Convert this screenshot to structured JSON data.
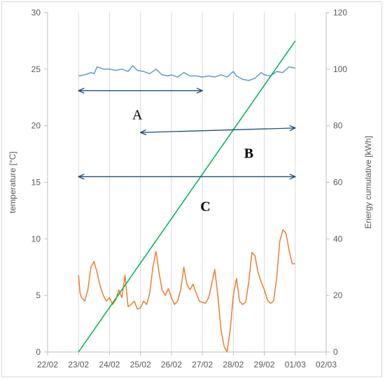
{
  "chart_data": {
    "type": "line",
    "title": "",
    "xlabel": "",
    "ylabel_left": "temperature [°C]",
    "ylabel_right": "Energy cumulative [kWh]",
    "x_ticks": [
      "22/02",
      "23/02",
      "24/02",
      "25/02",
      "26/02",
      "27/02",
      "28/02",
      "29/02",
      "01/03",
      "02/03"
    ],
    "x_range": [
      0,
      9
    ],
    "y_left_ticks": [
      "0",
      "5",
      "10",
      "15",
      "20",
      "25",
      "30"
    ],
    "y_left_range": [
      0,
      30
    ],
    "y_right_ticks": [
      "0",
      "20",
      "40",
      "60",
      "80",
      "100",
      "120"
    ],
    "y_right_range": [
      0,
      120
    ],
    "grid": "vertical",
    "legend": "none",
    "series": [
      {
        "axis": "left",
        "color": "#5b9bd5",
        "x": [
          1.0,
          1.2,
          1.4,
          1.5,
          1.6,
          1.8,
          2.0,
          2.2,
          2.4,
          2.6,
          2.75,
          2.9,
          3.1,
          3.3,
          3.5,
          3.7,
          3.9,
          4.0,
          4.2,
          4.4,
          4.6,
          4.8,
          5.0,
          5.2,
          5.4,
          5.6,
          5.8,
          6.0,
          6.1,
          6.3,
          6.5,
          6.7,
          6.9,
          7.0,
          7.2,
          7.4,
          7.6,
          7.8,
          8.0
        ],
        "y": [
          24.4,
          24.5,
          24.7,
          24.6,
          25.2,
          25.0,
          25.0,
          24.9,
          25.0,
          24.8,
          25.3,
          24.9,
          24.8,
          24.6,
          25.0,
          24.5,
          24.4,
          24.5,
          24.3,
          24.7,
          24.4,
          24.4,
          24.3,
          24.4,
          24.3,
          24.5,
          24.3,
          24.8,
          24.4,
          24.1,
          24.0,
          24.2,
          24.7,
          24.5,
          24.4,
          24.8,
          24.7,
          25.2,
          25.1
        ]
      },
      {
        "axis": "left",
        "color": "#ed7d31",
        "x": [
          1.0,
          1.05,
          1.1,
          1.2,
          1.3,
          1.4,
          1.5,
          1.6,
          1.7,
          1.8,
          1.9,
          2.0,
          2.1,
          2.2,
          2.3,
          2.4,
          2.5,
          2.6,
          2.7,
          2.8,
          2.9,
          3.0,
          3.1,
          3.2,
          3.3,
          3.4,
          3.5,
          3.6,
          3.7,
          3.8,
          3.9,
          4.0,
          4.1,
          4.2,
          4.3,
          4.4,
          4.5,
          4.6,
          4.7,
          4.8,
          4.9,
          5.0,
          5.1,
          5.2,
          5.3,
          5.4,
          5.5,
          5.6,
          5.7,
          5.8,
          5.9,
          6.0,
          6.1,
          6.2,
          6.3,
          6.4,
          6.5,
          6.6,
          6.7,
          6.8,
          6.9,
          7.0,
          7.1,
          7.2,
          7.3,
          7.4,
          7.5,
          7.6,
          7.7,
          7.8,
          7.9,
          8.0
        ],
        "y": [
          6.8,
          5.2,
          4.8,
          4.5,
          5.5,
          7.5,
          8.0,
          7.0,
          5.8,
          5.0,
          4.5,
          4.8,
          4.2,
          4.6,
          5.5,
          4.8,
          6.8,
          4.0,
          4.2,
          4.5,
          3.8,
          3.9,
          4.5,
          4.2,
          5.2,
          7.5,
          8.9,
          7.0,
          5.5,
          5.0,
          5.6,
          4.8,
          4.2,
          4.5,
          5.5,
          7.5,
          6.0,
          5.5,
          6.0,
          5.2,
          4.5,
          4.4,
          4.3,
          4.8,
          6.0,
          7.3,
          5.0,
          2.0,
          0.5,
          0.0,
          2.0,
          5.0,
          6.5,
          4.5,
          4.2,
          4.4,
          6.2,
          8.8,
          8.5,
          7.0,
          6.2,
          5.5,
          4.6,
          4.3,
          4.5,
          6.5,
          9.8,
          10.8,
          10.5,
          9.0,
          7.8,
          7.8
        ]
      },
      {
        "axis": "right",
        "color": "#00b050",
        "x": [
          1.0,
          8.0
        ],
        "y": [
          0,
          110
        ]
      }
    ],
    "annotations": [
      {
        "label": "A",
        "x1": 1.0,
        "x2": 5.0,
        "y": 23.1,
        "label_x": 2.9,
        "label_y": 21.0
      },
      {
        "label": "B",
        "x1": 3.0,
        "x2": 8.0,
        "y_start": 19.4,
        "y_end": 19.8,
        "label_x": 6.5,
        "label_y": 17.6
      },
      {
        "label": "C",
        "x1": 1.0,
        "x2": 8.0,
        "y": 15.5,
        "label_x": 5.1,
        "label_y": 12.9
      }
    ]
  }
}
